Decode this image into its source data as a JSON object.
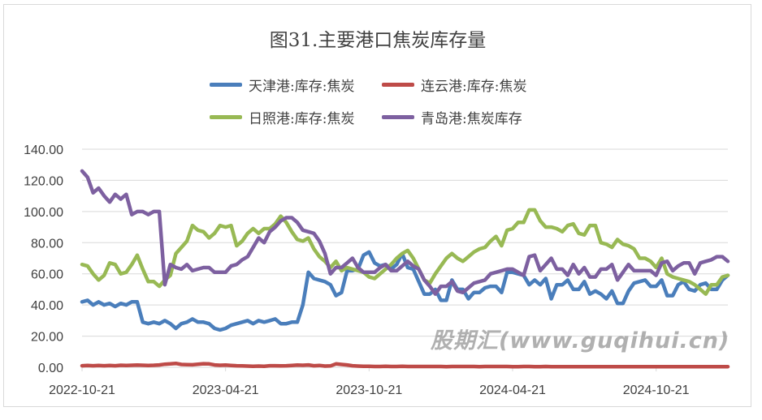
{
  "chart_data": {
    "type": "line",
    "title": "图31.主要港口焦炭库存量",
    "x_unit": "weeks since 2022-10-21",
    "x_tick_labels": [
      "2022-10-21",
      "2023-04-21",
      "2023-10-21",
      "2024-04-21",
      "2024-10-21"
    ],
    "x_tick_weeks": [
      0,
      26,
      52,
      78,
      104
    ],
    "y_tick_labels": [
      "0.00",
      "20.00",
      "40.00",
      "60.00",
      "80.00",
      "100.00",
      "120.00",
      "140.00"
    ],
    "ylim": [
      0,
      140
    ],
    "grid": true,
    "legend_position": "top",
    "series": [
      {
        "name": "天津港:库存:焦炭",
        "color": "#4a7ebb",
        "values": [
          42,
          43,
          40,
          42,
          40,
          41,
          39,
          41,
          40,
          42,
          42,
          29,
          28,
          29,
          28,
          30,
          28,
          25,
          28,
          29,
          31,
          29,
          29,
          28,
          25,
          24,
          25,
          27,
          28,
          29,
          30,
          28,
          30,
          29,
          30,
          31,
          28,
          28,
          29,
          29,
          40,
          61,
          57,
          56,
          55,
          53,
          46,
          48,
          62,
          62,
          63,
          72,
          74,
          67,
          65,
          66,
          63,
          66,
          73,
          64,
          63,
          55,
          47,
          47,
          50,
          43,
          43,
          56,
          50,
          50,
          44,
          48,
          48,
          51,
          52,
          52,
          48,
          61,
          61,
          60,
          59,
          53,
          56,
          53,
          57,
          44,
          53,
          53,
          56,
          50,
          50,
          55,
          47,
          49,
          47,
          44,
          49,
          41,
          41,
          49,
          54,
          55,
          56,
          52,
          52,
          56,
          46,
          46,
          53,
          55,
          50,
          49,
          53,
          54,
          50,
          50,
          56,
          59
        ]
      },
      {
        "name": "连云港:库存:焦炭",
        "color": "#be4b48",
        "values": [
          1,
          1.2,
          1,
          1.2,
          1,
          1.2,
          1,
          1.3,
          1.2,
          1.3,
          1.4,
          1.3,
          1.2,
          1.3,
          1.5,
          2,
          2.2,
          2.5,
          1.8,
          1.7,
          1.6,
          2,
          2.3,
          2.2,
          1.5,
          1.3,
          1.4,
          1.2,
          1,
          0.9,
          0.8,
          0.6,
          0.8,
          0.7,
          1,
          1,
          0.9,
          1,
          1.2,
          1.4,
          1.3,
          1.5,
          1,
          1.2,
          0.8,
          0.9,
          2.2,
          1.8,
          1.5,
          1,
          0.8,
          0.6,
          0.6,
          0.5,
          0.5,
          0.6,
          0.5,
          0.5,
          0.6,
          0.5,
          0.5,
          0.5,
          0.5,
          0.5,
          0.5,
          0.5,
          0.4,
          0.5,
          0.5,
          0.5,
          0.5,
          0.5,
          0.4,
          0.5,
          0.5,
          0.5,
          0.5,
          0.5,
          0.4,
          0.4,
          0.5,
          0.5,
          0.4,
          0.4,
          0.5,
          0.4,
          0.4,
          0.4,
          0.4,
          0.4,
          0.4,
          0.4,
          0.4,
          0.4,
          0.4,
          0.4,
          0.4,
          0.4,
          0.4,
          0.4,
          0.4,
          0.4,
          0.4,
          0.4,
          0.4,
          0.4,
          0.4,
          0.4,
          0.4,
          0.4,
          0.4,
          0.4,
          0.4,
          0.4,
          0.4,
          0.4,
          0.4,
          0.4
        ]
      },
      {
        "name": "日照港:库存:焦炭",
        "color": "#98b954",
        "values": [
          66,
          65,
          60,
          56,
          59,
          67,
          66,
          60,
          61,
          66,
          72,
          63,
          55,
          55,
          52,
          56,
          59,
          73,
          77,
          81,
          91,
          88,
          87,
          83,
          86,
          91,
          90,
          91,
          78,
          81,
          86,
          89,
          86,
          89,
          89,
          92,
          97,
          93,
          87,
          82,
          81,
          83,
          76,
          71,
          68,
          64,
          68,
          62,
          64,
          63,
          62,
          61,
          58,
          57,
          60,
          63,
          66,
          70,
          73,
          75,
          70,
          63,
          56,
          54,
          60,
          65,
          70,
          73,
          70,
          68,
          71,
          74,
          76,
          77,
          81,
          84,
          78,
          88,
          89,
          93,
          93,
          101,
          101,
          94,
          90,
          90,
          89,
          87,
          91,
          92,
          86,
          85,
          91,
          91,
          80,
          79,
          77,
          82,
          79,
          78,
          76,
          70,
          70,
          68,
          64,
          70,
          60,
          58,
          57,
          56,
          55,
          53,
          50,
          47,
          53,
          53,
          58,
          59
        ]
      },
      {
        "name": "青岛港:焦炭库存",
        "color": "#7d60a0",
        "values": [
          126,
          122,
          112,
          115,
          110,
          106,
          111,
          108,
          111,
          98,
          100,
          100,
          98,
          100,
          100,
          53,
          66,
          64,
          63,
          66,
          62,
          63,
          64,
          64,
          61,
          61,
          61,
          65,
          66,
          69,
          71,
          77,
          83,
          80,
          87,
          90,
          94,
          96,
          96,
          93,
          88,
          87,
          86,
          81,
          73,
          60,
          64,
          64,
          67,
          70,
          64,
          61,
          61,
          61,
          64,
          66,
          62,
          62,
          65,
          68,
          65,
          63,
          56,
          52,
          47,
          52,
          52,
          55,
          49,
          48,
          51,
          54,
          55,
          56,
          60,
          61,
          62,
          63,
          63,
          61,
          59,
          71,
          72,
          62,
          66,
          70,
          63,
          63,
          59,
          66,
          60,
          64,
          58,
          58,
          63,
          63,
          66,
          56,
          61,
          66,
          62,
          62,
          62,
          62,
          59,
          67,
          68,
          62,
          65,
          67,
          67,
          60,
          67,
          68,
          69,
          71,
          71,
          68
        ]
      }
    ]
  },
  "watermark": "股期汇(www.guqihui.cn)"
}
